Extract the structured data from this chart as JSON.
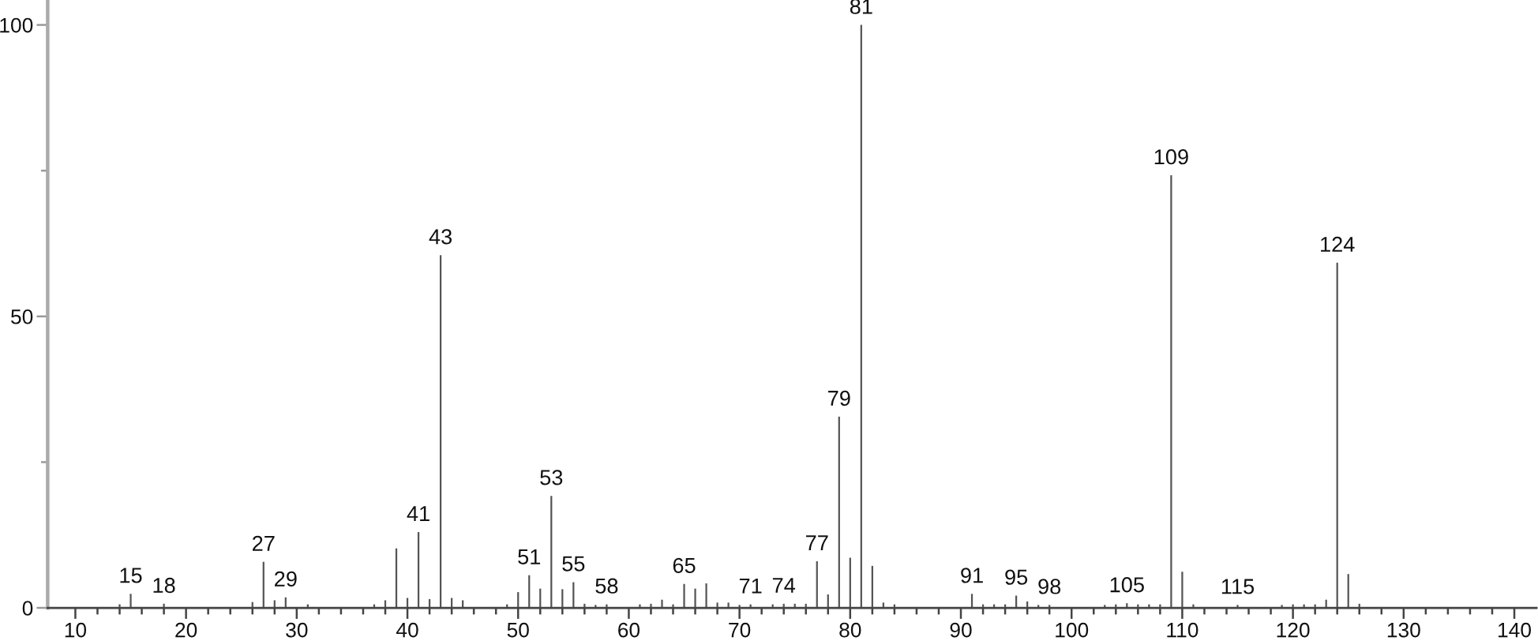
{
  "chart_data": {
    "type": "bar",
    "color": "#555555",
    "x": [
      14,
      15,
      18,
      26,
      27,
      28,
      29,
      31,
      37,
      38,
      39,
      40,
      41,
      42,
      43,
      44,
      45,
      49,
      50,
      51,
      52,
      53,
      54,
      55,
      56,
      57,
      58,
      61,
      62,
      63,
      64,
      65,
      66,
      67,
      68,
      69,
      70,
      71,
      73,
      74,
      75,
      76,
      77,
      78,
      79,
      80,
      81,
      82,
      83,
      84,
      91,
      92,
      93,
      94,
      95,
      96,
      97,
      98,
      103,
      104,
      105,
      106,
      107,
      108,
      109,
      110,
      111,
      115,
      119,
      120,
      121,
      122,
      123,
      124,
      125,
      126
    ],
    "values": [
      0.6,
      2.4,
      0.7,
      1.0,
      7.9,
      1.3,
      1.8,
      0.6,
      0.6,
      1.3,
      10.2,
      1.7,
      13.0,
      1.5,
      60.5,
      1.7,
      1.3,
      0.6,
      2.7,
      5.6,
      3.3,
      19.2,
      3.2,
      4.4,
      0.7,
      0.5,
      0.6,
      0.6,
      0.7,
      1.4,
      0.6,
      4.1,
      3.3,
      4.2,
      0.9,
      0.9,
      0.5,
      0.6,
      0.6,
      0.7,
      0.7,
      0.7,
      8.0,
      2.3,
      32.8,
      8.6,
      100,
      7.2,
      0.9,
      0.6,
      2.4,
      0.6,
      0.6,
      0.6,
      2.1,
      1.1,
      0.5,
      0.5,
      0.5,
      0.6,
      0.8,
      0.6,
      0.6,
      0.6,
      74.2,
      6.2,
      0.6,
      0.5,
      0.5,
      0.6,
      0.6,
      0.6,
      1.4,
      59.2,
      5.8,
      0.7
    ],
    "xlim": [
      7.5,
      142
    ],
    "ylim": [
      0,
      104
    ],
    "xticks": [
      10,
      {
        "value": 12,
        "label": null
      },
      {
        "value": 14,
        "label": null
      },
      {
        "value": 16,
        "label": null
      },
      {
        "value": 18,
        "label": null
      },
      20,
      {
        "value": 22,
        "label": null
      },
      {
        "value": 24,
        "label": null
      },
      {
        "value": 26,
        "label": null
      },
      {
        "value": 28,
        "label": null
      },
      30,
      {
        "value": 32,
        "label": null
      },
      {
        "value": 34,
        "label": null
      },
      {
        "value": 36,
        "label": null
      },
      {
        "value": 38,
        "label": null
      },
      40,
      {
        "value": 42,
        "label": null
      },
      {
        "value": 44,
        "label": null
      },
      {
        "value": 46,
        "label": null
      },
      {
        "value": 48,
        "label": null
      },
      50,
      {
        "value": 52,
        "label": null
      },
      {
        "value": 54,
        "label": null
      },
      {
        "value": 56,
        "label": null
      },
      {
        "value": 58,
        "label": null
      },
      60,
      {
        "value": 62,
        "label": null
      },
      {
        "value": 64,
        "label": null
      },
      {
        "value": 66,
        "label": null
      },
      {
        "value": 68,
        "label": null
      },
      70,
      {
        "value": 72,
        "label": null
      },
      {
        "value": 74,
        "label": null
      },
      {
        "value": 76,
        "label": null
      },
      {
        "value": 78,
        "label": null
      },
      80,
      {
        "value": 82,
        "label": null
      },
      {
        "value": 84,
        "label": null
      },
      {
        "value": 86,
        "label": null
      },
      {
        "value": 88,
        "label": null
      },
      90,
      {
        "value": 92,
        "label": null
      },
      {
        "value": 94,
        "label": null
      },
      {
        "value": 96,
        "label": null
      },
      {
        "value": 98,
        "label": null
      },
      100,
      {
        "value": 102,
        "label": null
      },
      {
        "value": 104,
        "label": null
      },
      {
        "value": 106,
        "label": null
      },
      {
        "value": 108,
        "label": null
      },
      110,
      {
        "value": 112,
        "label": null
      },
      {
        "value": 114,
        "label": null
      },
      {
        "value": 116,
        "label": null
      },
      {
        "value": 118,
        "label": null
      },
      120,
      {
        "value": 122,
        "label": null
      },
      {
        "value": 124,
        "label": null
      },
      {
        "value": 126,
        "label": null
      },
      {
        "value": 128,
        "label": null
      },
      130,
      {
        "value": 132,
        "label": null
      },
      {
        "value": 134,
        "label": null
      },
      {
        "value": 136,
        "label": null
      },
      {
        "value": 138,
        "label": null
      },
      140
    ],
    "yticks": [
      0,
      {
        "value": 25,
        "label": null
      },
      50,
      {
        "value": 75,
        "label": null
      },
      100
    ],
    "annotations": [
      {
        "text": "15",
        "x": 15,
        "y": 2.4
      },
      {
        "text": "18",
        "x": 18,
        "y": 0.7
      },
      {
        "text": "27",
        "x": 27,
        "y": 7.9
      },
      {
        "text": "29",
        "x": 29,
        "y": 1.8
      },
      {
        "text": "41",
        "x": 41,
        "y": 13.0
      },
      {
        "text": "43",
        "x": 43,
        "y": 60.5
      },
      {
        "text": "51",
        "x": 51,
        "y": 5.6
      },
      {
        "text": "53",
        "x": 53,
        "y": 19.2
      },
      {
        "text": "55",
        "x": 55,
        "y": 4.4
      },
      {
        "text": "58",
        "x": 58,
        "y": 0.6
      },
      {
        "text": "65",
        "x": 65,
        "y": 4.1
      },
      {
        "text": "71",
        "x": 71,
        "y": 0.6
      },
      {
        "text": "74",
        "x": 74,
        "y": 0.7
      },
      {
        "text": "77",
        "x": 77,
        "y": 8.0
      },
      {
        "text": "79",
        "x": 79,
        "y": 32.8
      },
      {
        "text": "81",
        "x": 81,
        "y": 100
      },
      {
        "text": "91",
        "x": 91,
        "y": 2.4
      },
      {
        "text": "95",
        "x": 95,
        "y": 2.1
      },
      {
        "text": "98",
        "x": 98,
        "y": 0.5
      },
      {
        "text": "105",
        "x": 105,
        "y": 0.8
      },
      {
        "text": "109",
        "x": 109,
        "y": 74.2
      },
      {
        "text": "115",
        "x": 115,
        "y": 0.5
      },
      {
        "text": "124",
        "x": 124,
        "y": 59.2
      }
    ]
  }
}
